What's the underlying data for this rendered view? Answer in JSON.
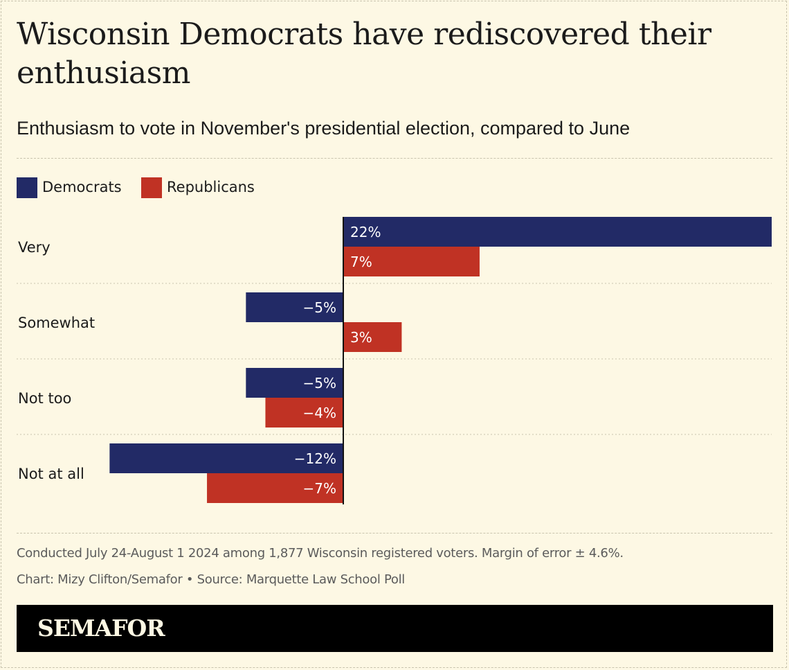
{
  "title": "Wisconsin Democrats have rediscovered their enthusiasm",
  "subtitle": "Enthusiasm to vote in November's presidential election, compared to June",
  "colors": {
    "democrats": "#222a66",
    "republicans": "#c03224",
    "background": "#fdf8e4"
  },
  "chart_data": {
    "type": "bar",
    "orientation": "horizontal",
    "categories": [
      "Very",
      "Somewhat",
      "Not too",
      "Not at all"
    ],
    "series": [
      {
        "name": "Democrats",
        "values": [
          22,
          -5,
          -5,
          -12
        ],
        "labels": [
          "22%",
          "−5%",
          "−5%",
          "−12%"
        ]
      },
      {
        "name": "Republicans",
        "values": [
          7,
          3,
          -4,
          -7
        ],
        "labels": [
          "7%",
          "3%",
          "−4%",
          "−7%"
        ]
      }
    ],
    "xlim": [
      -12.7,
      22
    ],
    "unit": "%",
    "legend": "top-left",
    "grid": false
  },
  "footer": {
    "note": "Conducted July 24-August 1 2024 among 1,877 Wisconsin registered voters. Margin of error ± 4.6%.",
    "credit": "Chart: Mizy Clifton/Semafor • Source: Marquette Law School Poll"
  },
  "brand": "SEMAFOR"
}
